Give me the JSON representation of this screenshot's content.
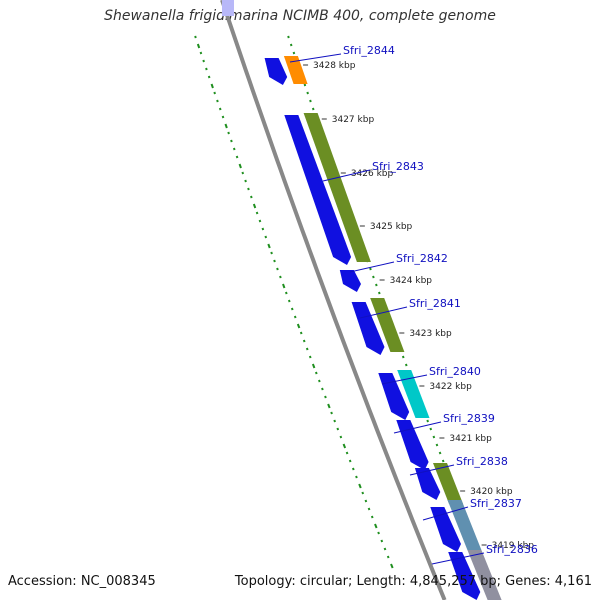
{
  "title": "Shewanella frigidimarina NCIMB 400, complete genome",
  "footer": {
    "accession": "Accession: NC_008345",
    "summary": "Topology: circular; Length: 4,845,257 bp; Genes: 4,161"
  },
  "colors": {
    "cds_forward": "#1010e0",
    "orange": "#ff8c00",
    "olive": "#6b8e23",
    "cyan": "#00c8c8",
    "backbone": "#888888",
    "gc_dots": "#1f8f1f",
    "gene_label": "#1010c0"
  },
  "scale_ticks": [
    "3428 kbp",
    "3427 kbp",
    "3426 kbp",
    "3425 kbp",
    "3424 kbp",
    "3423 kbp",
    "3422 kbp",
    "3421 kbp",
    "3420 kbp",
    "3419 kbp"
  ],
  "gene_labels": [
    "Sfri_2844",
    "Sfri_2843",
    "Sfri_2842",
    "Sfri_2841",
    "Sfri_2840",
    "Sfri_2839",
    "Sfri_2838",
    "Sfri_2837",
    "Sfri_2836"
  ]
}
